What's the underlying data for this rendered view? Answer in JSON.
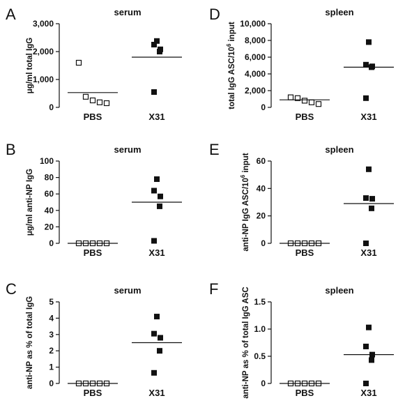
{
  "chart_data": [
    {
      "id": "A",
      "type": "scatter",
      "letter": "A",
      "title": "serum",
      "ylabel_parts": [
        {
          "t": "μg/ml total IgG"
        }
      ],
      "ylim": [
        0,
        3000
      ],
      "yticks": [
        0,
        1000,
        2000,
        3000
      ],
      "ytick_labels": [
        "0",
        "1,000",
        "2,000",
        "3,000"
      ],
      "categories": [
        "PBS",
        "X31"
      ],
      "series": [
        {
          "values": [
            1600,
            380,
            250,
            180,
            150
          ],
          "marker": "open-square",
          "mean": 530
        },
        {
          "values": [
            2380,
            2250,
            2080,
            2000,
            550
          ],
          "marker": "filled-square",
          "mean": 1800
        }
      ]
    },
    {
      "id": "B",
      "type": "scatter",
      "letter": "B",
      "title": "serum",
      "ylabel_parts": [
        {
          "t": "μg/ml anti-NP IgG"
        }
      ],
      "ylim": [
        0,
        100
      ],
      "yticks": [
        0,
        20,
        40,
        60,
        80,
        100
      ],
      "ytick_labels": [
        "0",
        "20",
        "40",
        "60",
        "80",
        "100"
      ],
      "categories": [
        "PBS",
        "X31"
      ],
      "series": [
        {
          "values": [
            0,
            0,
            0,
            0,
            0
          ],
          "marker": "open-square",
          "mean": 0
        },
        {
          "values": [
            78,
            64,
            57,
            45,
            3
          ],
          "marker": "filled-square",
          "mean": 50
        }
      ]
    },
    {
      "id": "C",
      "type": "scatter",
      "letter": "C",
      "title": "serum",
      "ylabel_parts": [
        {
          "t": "anti-NP as % of total IgG"
        }
      ],
      "ylim": [
        0,
        5
      ],
      "yticks": [
        0,
        1,
        2,
        3,
        4,
        5
      ],
      "ytick_labels": [
        "0",
        "1",
        "2",
        "3",
        "4",
        "5"
      ],
      "categories": [
        "PBS",
        "X31"
      ],
      "series": [
        {
          "values": [
            0,
            0,
            0,
            0,
            0
          ],
          "marker": "open-square",
          "mean": 0
        },
        {
          "values": [
            4.1,
            3.05,
            2.8,
            2.0,
            0.65
          ],
          "marker": "filled-square",
          "mean": 2.5
        }
      ]
    },
    {
      "id": "D",
      "type": "scatter",
      "letter": "D",
      "title": "spleen",
      "ylabel_parts": [
        {
          "t": "total IgG ASC/10"
        },
        {
          "t": "6",
          "sup": true
        },
        {
          "t": " input"
        }
      ],
      "ylim": [
        0,
        10000
      ],
      "yticks": [
        0,
        2000,
        4000,
        6000,
        8000,
        10000
      ],
      "ytick_labels": [
        "0",
        "2,000",
        "4,000",
        "6,000",
        "8,000",
        "10,000"
      ],
      "categories": [
        "PBS",
        "X31"
      ],
      "series": [
        {
          "values": [
            1200,
            1100,
            800,
            600,
            400
          ],
          "marker": "open-square",
          "mean": 900
        },
        {
          "values": [
            7800,
            5100,
            4900,
            4800,
            1100
          ],
          "marker": "filled-square",
          "mean": 4800
        }
      ]
    },
    {
      "id": "E",
      "type": "scatter",
      "letter": "E",
      "title": "spleen",
      "ylabel_parts": [
        {
          "t": "anti-NP IgG ASC/10"
        },
        {
          "t": "6",
          "sup": true
        },
        {
          "t": " input"
        }
      ],
      "ylim": [
        0,
        60
      ],
      "yticks": [
        0,
        20,
        40,
        60
      ],
      "ytick_labels": [
        "0",
        "20",
        "40",
        "60"
      ],
      "categories": [
        "PBS",
        "X31"
      ],
      "series": [
        {
          "values": [
            0,
            0,
            0,
            0,
            0
          ],
          "marker": "open-square",
          "mean": 0
        },
        {
          "values": [
            54,
            33,
            32.5,
            25.5,
            0
          ],
          "marker": "filled-square",
          "mean": 29
        }
      ]
    },
    {
      "id": "F",
      "type": "scatter",
      "letter": "F",
      "title": "spleen",
      "ylabel_parts": [
        {
          "t": "anti-NP as % of total IgG ASC"
        }
      ],
      "ylim": [
        0,
        1.5
      ],
      "yticks": [
        0,
        0.5,
        1.0,
        1.5
      ],
      "ytick_labels": [
        "0",
        "0.5",
        "1.0",
        "1.5"
      ],
      "categories": [
        "PBS",
        "X31"
      ],
      "series": [
        {
          "values": [
            0,
            0,
            0,
            0,
            0
          ],
          "marker": "open-square",
          "mean": 0
        },
        {
          "values": [
            1.03,
            0.68,
            0.53,
            0.43,
            0
          ],
          "marker": "filled-square",
          "mean": 0.53
        }
      ]
    }
  ]
}
